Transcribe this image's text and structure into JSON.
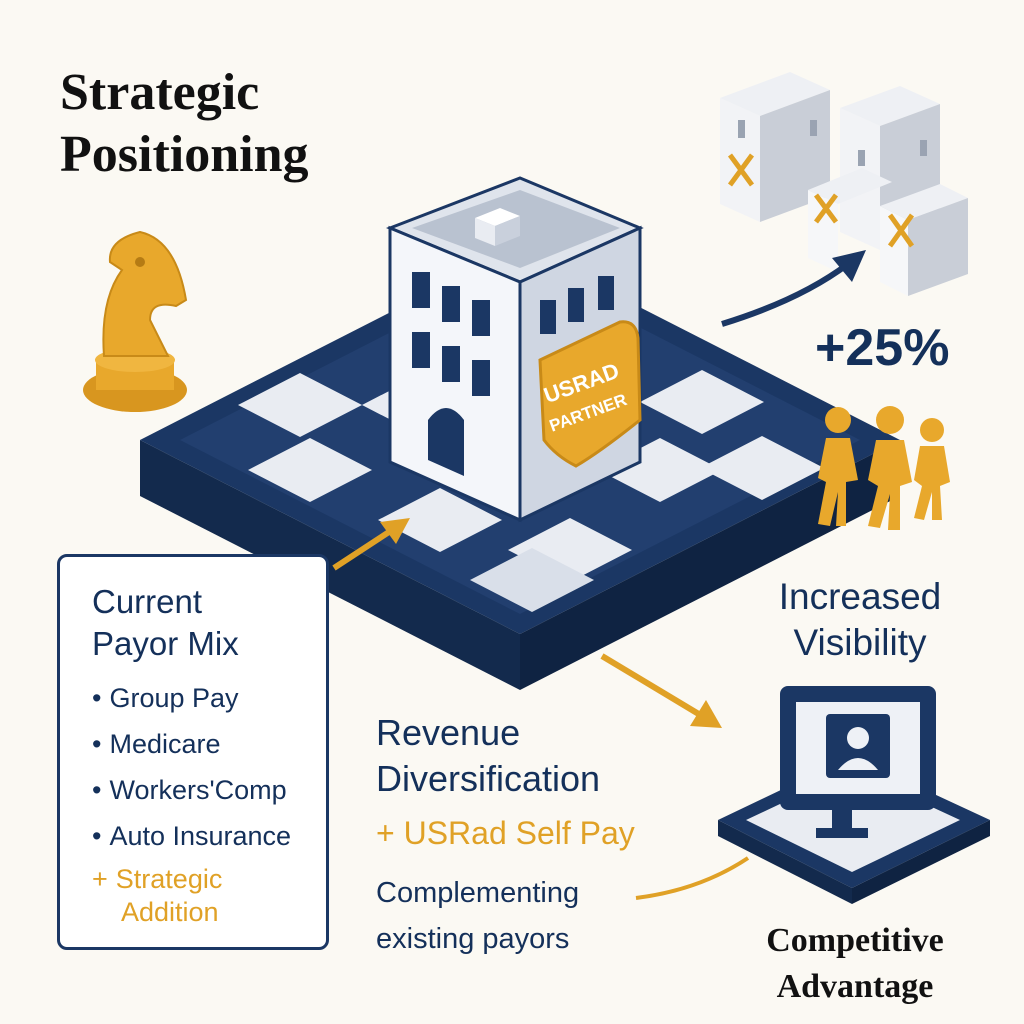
{
  "title": {
    "line1": "Strategic",
    "line2": "Positioning"
  },
  "badge": {
    "line1": "USRAD",
    "line2": "PARTNER"
  },
  "growth": {
    "value": "+25%"
  },
  "visibility": {
    "line1": "Increased",
    "line2": "Visibility"
  },
  "payor_mix": {
    "title_line1": "Current",
    "title_line2": "Payor Mix",
    "items": [
      "Group Pay",
      "Medicare",
      "Workers'Comp",
      "Auto Insurance"
    ],
    "addition_line1": "Strategic",
    "addition_line2": "Addition"
  },
  "revenue": {
    "title_line1": "Revenue",
    "title_line2": "Diversification",
    "self_pay": "USRad Self Pay",
    "note_line1": "Complementing",
    "note_line2": "existing payors"
  },
  "advantage": {
    "line1": "Competitive",
    "line2": "Advantage"
  },
  "colors": {
    "navy": "#1b3764",
    "gold": "#e0a126",
    "background": "#fbf9f3"
  },
  "icons": [
    "chess-knight-icon",
    "building-icon",
    "competitor-buildings-icon",
    "people-icon",
    "monitor-user-icon",
    "arrow-icon"
  ]
}
